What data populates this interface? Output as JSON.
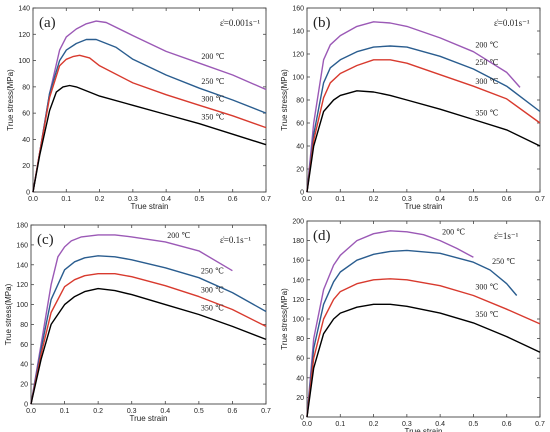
{
  "figure": {
    "legend_note": "Series labels placed inline at right of each panel"
  },
  "chart_data": [
    {
      "type": "line",
      "panel_label": "(a)",
      "rate_label": "ε̇=0.001s⁻¹",
      "xlabel": "True strain",
      "ylabel": "True stress(MPa)",
      "xlim": [
        0,
        0.7
      ],
      "ylim": [
        0,
        140
      ],
      "xticks": [
        "0.0",
        "0.1",
        "0.2",
        "0.3",
        "0.4",
        "0.5",
        "0.6",
        "0.7"
      ],
      "yticks": [
        "0",
        "20",
        "40",
        "60",
        "80",
        "100",
        "120",
        "140"
      ],
      "series": [
        {
          "name": "200 ℃",
          "color": "#9b59b6",
          "x": [
            0,
            0.02,
            0.05,
            0.08,
            0.1,
            0.13,
            0.16,
            0.19,
            0.22,
            0.3,
            0.4,
            0.5,
            0.6,
            0.7
          ],
          "y": [
            0,
            30,
            75,
            108,
            118,
            124,
            128,
            130,
            129,
            119,
            107,
            98,
            89,
            78
          ]
        },
        {
          "name": "250 ℃",
          "color": "#2a5d8f",
          "x": [
            0,
            0.02,
            0.05,
            0.08,
            0.1,
            0.13,
            0.16,
            0.19,
            0.25,
            0.3,
            0.4,
            0.5,
            0.6,
            0.7
          ],
          "y": [
            0,
            30,
            75,
            100,
            108,
            113,
            116,
            116,
            110,
            101,
            89,
            79,
            70,
            60
          ]
        },
        {
          "name": "300 ℃",
          "color": "#d83a2e",
          "x": [
            0,
            0.02,
            0.05,
            0.08,
            0.1,
            0.12,
            0.14,
            0.17,
            0.2,
            0.3,
            0.4,
            0.5,
            0.6,
            0.7
          ],
          "y": [
            0,
            30,
            72,
            96,
            101,
            103,
            104,
            102,
            96,
            83,
            74,
            66,
            58,
            49
          ]
        },
        {
          "name": "350 ℃",
          "color": "#000000",
          "x": [
            0,
            0.02,
            0.05,
            0.07,
            0.09,
            0.11,
            0.13,
            0.17,
            0.2,
            0.3,
            0.4,
            0.5,
            0.6,
            0.7
          ],
          "y": [
            0,
            28,
            62,
            76,
            80,
            81,
            80,
            76,
            73,
            66,
            59,
            52,
            44,
            36
          ]
        }
      ]
    },
    {
      "type": "line",
      "panel_label": "(b)",
      "rate_label": "ε̇=0.01s⁻¹",
      "xlabel": "True strain",
      "ylabel": "True stress(MPa)",
      "xlim": [
        0,
        0.7
      ],
      "ylim": [
        0,
        160
      ],
      "xticks": [
        "0.0",
        "0.1",
        "0.2",
        "0.3",
        "0.4",
        "0.5",
        "0.6",
        "0.7"
      ],
      "yticks": [
        "0",
        "20",
        "40",
        "60",
        "80",
        "100",
        "120",
        "140",
        "160"
      ],
      "series": [
        {
          "name": "200 ℃",
          "color": "#9b59b6",
          "x": [
            0,
            0.02,
            0.05,
            0.07,
            0.1,
            0.15,
            0.2,
            0.25,
            0.3,
            0.4,
            0.5,
            0.6,
            0.64
          ],
          "y": [
            0,
            60,
            115,
            128,
            136,
            144,
            148,
            147,
            144,
            134,
            122,
            104,
            91
          ]
        },
        {
          "name": "250 ℃",
          "color": "#2a5d8f",
          "x": [
            0,
            0.02,
            0.05,
            0.07,
            0.1,
            0.15,
            0.2,
            0.25,
            0.3,
            0.4,
            0.5,
            0.6,
            0.7
          ],
          "y": [
            0,
            50,
            95,
            108,
            115,
            122,
            126,
            127,
            126,
            118,
            107,
            92,
            70
          ]
        },
        {
          "name": "300 ℃",
          "color": "#d83a2e",
          "x": [
            0,
            0.02,
            0.05,
            0.07,
            0.1,
            0.15,
            0.2,
            0.25,
            0.3,
            0.4,
            0.5,
            0.6,
            0.7
          ],
          "y": [
            0,
            45,
            82,
            95,
            103,
            110,
            115,
            115,
            112,
            102,
            92,
            81,
            60
          ]
        },
        {
          "name": "350 ℃",
          "color": "#000000",
          "x": [
            0,
            0.02,
            0.05,
            0.08,
            0.1,
            0.15,
            0.2,
            0.25,
            0.3,
            0.4,
            0.5,
            0.6,
            0.7
          ],
          "y": [
            0,
            40,
            70,
            80,
            84,
            88,
            87,
            84,
            80,
            72,
            63,
            54,
            40
          ]
        }
      ]
    },
    {
      "type": "line",
      "panel_label": "(c)",
      "rate_label": "ε̇=0.1s⁻¹",
      "xlabel": "True strain",
      "ylabel": "True stress(MPa)",
      "xlim": [
        0,
        0.7
      ],
      "ylim": [
        0,
        180
      ],
      "xticks": [
        "0.0",
        "0.1",
        "0.2",
        "0.3",
        "0.4",
        "0.5",
        "0.6",
        "0.7"
      ],
      "yticks": [
        "0",
        "20",
        "40",
        "60",
        "80",
        "100",
        "120",
        "140",
        "160",
        "180"
      ],
      "series": [
        {
          "name": "200 ℃",
          "color": "#9b59b6",
          "x": [
            0,
            0.03,
            0.06,
            0.08,
            0.1,
            0.12,
            0.15,
            0.2,
            0.25,
            0.3,
            0.4,
            0.5,
            0.6
          ],
          "y": [
            0,
            60,
            120,
            148,
            158,
            164,
            168,
            170,
            170,
            168,
            163,
            154,
            134
          ]
        },
        {
          "name": "250 ℃",
          "color": "#2a5d8f",
          "x": [
            0,
            0.03,
            0.06,
            0.1,
            0.13,
            0.16,
            0.2,
            0.25,
            0.3,
            0.4,
            0.5,
            0.6,
            0.7
          ],
          "y": [
            0,
            55,
            105,
            135,
            143,
            147,
            149,
            148,
            145,
            137,
            127,
            112,
            93
          ]
        },
        {
          "name": "300 ℃",
          "color": "#d83a2e",
          "x": [
            0,
            0.03,
            0.06,
            0.1,
            0.13,
            0.16,
            0.2,
            0.25,
            0.3,
            0.4,
            0.5,
            0.6,
            0.7
          ],
          "y": [
            0,
            50,
            92,
            118,
            125,
            129,
            131,
            131,
            128,
            119,
            108,
            95,
            78
          ]
        },
        {
          "name": "350 ℃",
          "color": "#000000",
          "x": [
            0,
            0.03,
            0.06,
            0.1,
            0.13,
            0.16,
            0.2,
            0.25,
            0.3,
            0.4,
            0.5,
            0.6,
            0.7
          ],
          "y": [
            0,
            45,
            80,
            100,
            108,
            113,
            116,
            114,
            110,
            100,
            90,
            78,
            65
          ]
        }
      ]
    },
    {
      "type": "line",
      "panel_label": "(d)",
      "rate_label": "ε̇=1s⁻¹",
      "xlabel": "True strain",
      "ylabel": "True stress(MPa)",
      "xlim": [
        0,
        0.7
      ],
      "ylim": [
        0,
        200
      ],
      "xticks": [
        "0.0",
        "0.1",
        "0.2",
        "0.3",
        "0.4",
        "0.5",
        "0.6",
        "0.7"
      ],
      "yticks": [
        "0",
        "20",
        "40",
        "60",
        "80",
        "100",
        "120",
        "140",
        "160",
        "180",
        "200"
      ],
      "series": [
        {
          "name": "200 ℃",
          "color": "#9b59b6",
          "x": [
            0,
            0.02,
            0.05,
            0.08,
            0.1,
            0.15,
            0.2,
            0.25,
            0.3,
            0.35,
            0.4,
            0.45,
            0.5
          ],
          "y": [
            0,
            80,
            130,
            155,
            165,
            180,
            187,
            190,
            189,
            186,
            180,
            172,
            163
          ]
        },
        {
          "name": "250 ℃",
          "color": "#2a5d8f",
          "x": [
            0,
            0.02,
            0.05,
            0.08,
            0.1,
            0.15,
            0.2,
            0.25,
            0.3,
            0.4,
            0.5,
            0.55,
            0.6,
            0.63
          ],
          "y": [
            0,
            70,
            115,
            138,
            148,
            160,
            166,
            169,
            170,
            167,
            158,
            150,
            136,
            124
          ]
        },
        {
          "name": "300 ℃",
          "color": "#d83a2e",
          "x": [
            0,
            0.02,
            0.05,
            0.08,
            0.1,
            0.15,
            0.2,
            0.25,
            0.3,
            0.4,
            0.5,
            0.6,
            0.7
          ],
          "y": [
            0,
            60,
            100,
            120,
            128,
            136,
            140,
            141,
            140,
            134,
            124,
            110,
            95
          ]
        },
        {
          "name": "350 ℃",
          "color": "#000000",
          "x": [
            0,
            0.02,
            0.05,
            0.08,
            0.1,
            0.15,
            0.2,
            0.25,
            0.3,
            0.4,
            0.5,
            0.6,
            0.7
          ],
          "y": [
            0,
            50,
            85,
            100,
            106,
            112,
            115,
            115,
            113,
            106,
            96,
            82,
            66
          ]
        }
      ]
    }
  ]
}
